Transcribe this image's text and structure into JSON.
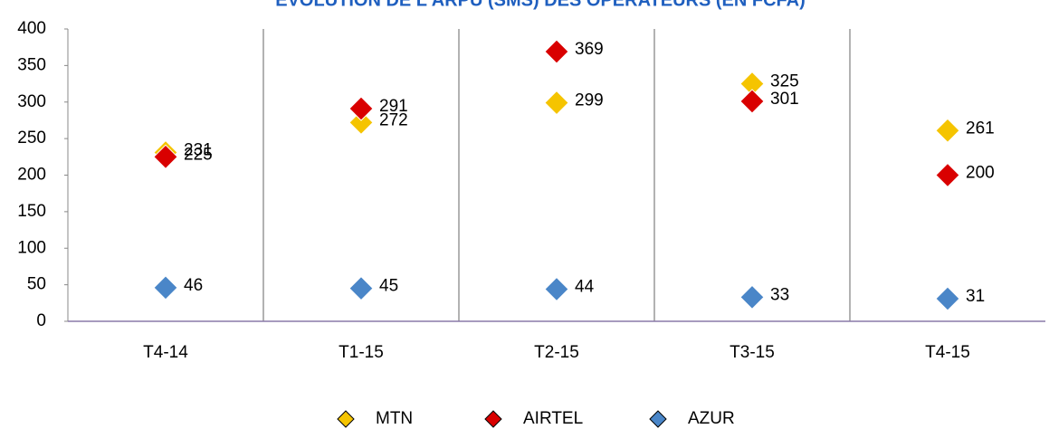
{
  "chart_data": {
    "type": "scatter",
    "title": "EVOLUTION DE L'ARPU (SMS) DES OPERATEURS (EN FCFA)",
    "categories": [
      "T4-14",
      "T1-15",
      "T2-15",
      "T3-15",
      "T4-15"
    ],
    "series": [
      {
        "name": "MTN",
        "color": "#f5c400",
        "values": [
          231,
          272,
          299,
          325,
          261
        ]
      },
      {
        "name": "AIRTEL",
        "color": "#d90000",
        "values": [
          225,
          291,
          369,
          301,
          200
        ]
      },
      {
        "name": "AZUR",
        "color": "#4a86c8",
        "values": [
          46,
          45,
          44,
          33,
          31
        ]
      }
    ],
    "ylim": [
      0,
      400
    ],
    "yticks": [
      0,
      50,
      100,
      150,
      200,
      250,
      300,
      350,
      400
    ],
    "legend": "bottom"
  }
}
